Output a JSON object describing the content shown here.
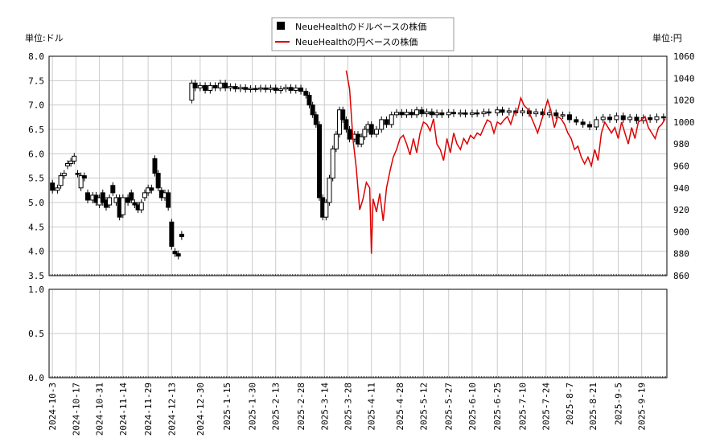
{
  "chart_data": {
    "type": "candlestick+line",
    "legend": [
      {
        "label": "NeueHealthのドルベースの株価",
        "color": "#000000",
        "marker": "square"
      },
      {
        "label": "NeueHealthの円ベースの株価",
        "color": "#dd0000",
        "marker": "line"
      }
    ],
    "left_unit": "単位:ドル",
    "right_unit": "単位:円",
    "y_left": {
      "min": 3.5,
      "max": 8.0,
      "ticks": [
        "3.5",
        "4.0",
        "4.5",
        "5.0",
        "5.5",
        "6.0",
        "6.5",
        "7.0",
        "7.5",
        "8.0"
      ]
    },
    "y_right": {
      "min": 860,
      "max": 1060,
      "ticks": [
        "860",
        "880",
        "900",
        "920",
        "940",
        "960",
        "980",
        "1000",
        "1020",
        "1040",
        "1060"
      ]
    },
    "y_volume": {
      "min": 0.0,
      "max": 1.0,
      "ticks": [
        "0.0",
        "0.5",
        "1.0"
      ]
    },
    "x_range": [
      "2024-10-01",
      "2025-10-04"
    ],
    "x_ticks": [
      "2024-10-3",
      "2024-10-17",
      "2024-10-31",
      "2024-11-14",
      "2024-11-29",
      "2024-12-13",
      "2024-12-30",
      "2025-1-15",
      "2025-1-30",
      "2025-2-13",
      "2025-2-28",
      "2025-3-14",
      "2025-3-28",
      "2025-4-11",
      "2025-4-28",
      "2025-5-12",
      "2025-5-27",
      "2025-6-10",
      "2025-6-25",
      "2025-7-10",
      "2025-7-24",
      "2025-8-7",
      "2025-8-21",
      "2025-9-5",
      "2025-9-19"
    ],
    "grid": true,
    "legend_position": "top-center",
    "usd_series": [
      [
        "2024-10-03",
        5.4,
        5.25
      ],
      [
        "2024-10-06",
        5.25,
        5.3
      ],
      [
        "2024-10-08",
        5.35,
        5.55
      ],
      [
        "2024-10-10",
        5.55,
        5.6
      ],
      [
        "2024-10-12",
        5.75,
        5.8
      ],
      [
        "2024-10-14",
        5.8,
        5.85
      ],
      [
        "2024-10-16",
        5.85,
        5.95
      ],
      [
        "2024-10-18",
        5.6,
        5.58
      ],
      [
        "2024-10-20",
        5.3,
        5.55
      ],
      [
        "2024-10-22",
        5.55,
        5.5
      ],
      [
        "2024-10-24",
        5.2,
        5.05
      ],
      [
        "2024-10-27",
        5.05,
        5.15
      ],
      [
        "2024-10-29",
        5.15,
        5.0
      ],
      [
        "2024-10-31",
        4.95,
        5.1
      ],
      [
        "2024-11-02",
        5.2,
        5.0
      ],
      [
        "2024-11-04",
        5.05,
        4.9
      ],
      [
        "2024-11-06",
        4.95,
        5.1
      ],
      [
        "2024-11-08",
        5.35,
        5.2
      ],
      [
        "2024-11-10",
        5.0,
        5.1
      ],
      [
        "2024-11-12",
        5.1,
        4.7
      ],
      [
        "2024-11-14",
        4.75,
        5.1
      ],
      [
        "2024-11-17",
        5.1,
        5.0
      ],
      [
        "2024-11-19",
        5.2,
        5.05
      ],
      [
        "2024-11-21",
        5.0,
        4.95
      ],
      [
        "2024-11-23",
        4.95,
        4.85
      ],
      [
        "2024-11-25",
        4.85,
        5.0
      ],
      [
        "2024-11-27",
        5.1,
        5.2
      ],
      [
        "2024-11-29",
        5.2,
        5.3
      ],
      [
        "2024-12-01",
        5.3,
        5.25
      ],
      [
        "2024-12-03",
        5.9,
        5.6
      ],
      [
        "2024-12-05",
        5.6,
        5.3
      ],
      [
        "2024-12-07",
        5.25,
        5.1
      ],
      [
        "2024-12-09",
        5.1,
        5.2
      ],
      [
        "2024-12-11",
        5.2,
        4.9
      ],
      [
        "2024-12-13",
        4.6,
        4.1
      ],
      [
        "2024-12-15",
        4.0,
        3.95
      ],
      [
        "2024-12-17",
        3.95,
        3.9
      ],
      [
        "2024-12-19",
        4.35,
        4.3
      ],
      [
        "2024-12-25",
        7.1,
        7.45
      ],
      [
        "2024-12-27",
        7.45,
        7.35
      ],
      [
        "2024-12-30",
        7.35,
        7.4
      ],
      [
        "2025-01-02",
        7.4,
        7.3
      ],
      [
        "2025-01-05",
        7.3,
        7.4
      ],
      [
        "2025-01-08",
        7.4,
        7.35
      ],
      [
        "2025-01-11",
        7.35,
        7.45
      ],
      [
        "2025-01-14",
        7.45,
        7.35
      ],
      [
        "2025-01-17",
        7.35,
        7.38
      ],
      [
        "2025-01-20",
        7.38,
        7.33
      ],
      [
        "2025-01-23",
        7.33,
        7.36
      ],
      [
        "2025-01-26",
        7.36,
        7.32
      ],
      [
        "2025-01-29",
        7.32,
        7.34
      ],
      [
        "2025-02-01",
        7.34,
        7.33
      ],
      [
        "2025-02-04",
        7.33,
        7.35
      ],
      [
        "2025-02-07",
        7.35,
        7.32
      ],
      [
        "2025-02-10",
        7.32,
        7.35
      ],
      [
        "2025-02-13",
        7.35,
        7.3
      ],
      [
        "2025-02-16",
        7.3,
        7.33
      ],
      [
        "2025-02-19",
        7.33,
        7.36
      ],
      [
        "2025-02-22",
        7.36,
        7.3
      ],
      [
        "2025-02-25",
        7.3,
        7.35
      ],
      [
        "2025-02-28",
        7.35,
        7.28
      ],
      [
        "2025-03-03",
        7.28,
        7.2
      ],
      [
        "2025-03-05",
        7.2,
        7.0
      ],
      [
        "2025-03-07",
        7.0,
        6.8
      ],
      [
        "2025-03-09",
        6.8,
        6.6
      ],
      [
        "2025-03-11",
        6.6,
        5.1
      ],
      [
        "2025-03-13",
        5.1,
        4.7
      ],
      [
        "2025-03-15",
        4.7,
        5.0
      ],
      [
        "2025-03-17",
        5.0,
        5.5
      ],
      [
        "2025-03-19",
        5.5,
        6.1
      ],
      [
        "2025-03-21",
        6.1,
        6.4
      ],
      [
        "2025-03-23",
        6.4,
        6.9
      ],
      [
        "2025-03-25",
        6.9,
        6.7
      ],
      [
        "2025-03-27",
        6.7,
        6.5
      ],
      [
        "2025-03-29",
        6.5,
        6.3
      ],
      [
        "2025-04-01",
        6.3,
        6.4
      ],
      [
        "2025-04-03",
        6.4,
        6.2
      ],
      [
        "2025-04-05",
        6.2,
        6.35
      ],
      [
        "2025-04-07",
        6.35,
        6.5
      ],
      [
        "2025-04-09",
        6.5,
        6.6
      ],
      [
        "2025-04-11",
        6.6,
        6.4
      ],
      [
        "2025-04-14",
        6.4,
        6.5
      ],
      [
        "2025-04-17",
        6.5,
        6.7
      ],
      [
        "2025-04-20",
        6.7,
        6.6
      ],
      [
        "2025-04-23",
        6.6,
        6.8
      ],
      [
        "2025-04-26",
        6.8,
        6.85
      ],
      [
        "2025-04-29",
        6.85,
        6.8
      ],
      [
        "2025-05-02",
        6.8,
        6.85
      ],
      [
        "2025-05-05",
        6.85,
        6.8
      ],
      [
        "2025-05-08",
        6.8,
        6.9
      ],
      [
        "2025-05-11",
        6.9,
        6.82
      ],
      [
        "2025-05-14",
        6.82,
        6.86
      ],
      [
        "2025-05-17",
        6.86,
        6.8
      ],
      [
        "2025-05-20",
        6.8,
        6.84
      ],
      [
        "2025-05-23",
        6.84,
        6.8
      ],
      [
        "2025-05-27",
        6.8,
        6.85
      ],
      [
        "2025-05-30",
        6.85,
        6.82
      ],
      [
        "2025-06-03",
        6.82,
        6.84
      ],
      [
        "2025-06-06",
        6.84,
        6.81
      ],
      [
        "2025-06-10",
        6.81,
        6.84
      ],
      [
        "2025-06-13",
        6.84,
        6.82
      ],
      [
        "2025-06-17",
        6.82,
        6.86
      ],
      [
        "2025-06-20",
        6.86,
        6.84
      ],
      [
        "2025-06-25",
        6.84,
        6.9
      ],
      [
        "2025-06-28",
        6.9,
        6.85
      ],
      [
        "2025-07-02",
        6.85,
        6.88
      ],
      [
        "2025-07-06",
        6.88,
        6.84
      ],
      [
        "2025-07-10",
        6.84,
        6.88
      ],
      [
        "2025-07-14",
        6.88,
        6.82
      ],
      [
        "2025-07-18",
        6.82,
        6.86
      ],
      [
        "2025-07-22",
        6.86,
        6.8
      ],
      [
        "2025-07-26",
        6.8,
        6.84
      ],
      [
        "2025-07-30",
        6.84,
        6.78
      ],
      [
        "2025-08-03",
        6.78,
        6.8
      ],
      [
        "2025-08-07",
        6.8,
        6.7
      ],
      [
        "2025-08-11",
        6.7,
        6.65
      ],
      [
        "2025-08-15",
        6.65,
        6.6
      ],
      [
        "2025-08-19",
        6.6,
        6.55
      ],
      [
        "2025-08-23",
        6.55,
        6.7
      ],
      [
        "2025-08-27",
        6.7,
        6.75
      ],
      [
        "2025-08-31",
        6.75,
        6.7
      ],
      [
        "2025-09-04",
        6.7,
        6.78
      ],
      [
        "2025-09-08",
        6.78,
        6.7
      ],
      [
        "2025-09-12",
        6.7,
        6.75
      ],
      [
        "2025-09-16",
        6.75,
        6.68
      ],
      [
        "2025-09-20",
        6.68,
        6.74
      ],
      [
        "2025-09-24",
        6.74,
        6.7
      ],
      [
        "2025-09-28",
        6.7,
        6.76
      ],
      [
        "2025-10-02",
        6.76,
        6.74
      ]
    ],
    "jpy_series": [
      [
        "2025-03-27",
        1047
      ],
      [
        "2025-03-29",
        1030
      ],
      [
        "2025-03-31",
        985
      ],
      [
        "2025-04-02",
        958
      ],
      [
        "2025-04-04",
        920
      ],
      [
        "2025-04-06",
        930
      ],
      [
        "2025-04-08",
        945
      ],
      [
        "2025-04-10",
        940
      ],
      [
        "2025-04-11",
        880
      ],
      [
        "2025-04-12",
        930
      ],
      [
        "2025-04-14",
        918
      ],
      [
        "2025-04-16",
        935
      ],
      [
        "2025-04-18",
        910
      ],
      [
        "2025-04-20",
        940
      ],
      [
        "2025-04-22",
        955
      ],
      [
        "2025-04-24",
        968
      ],
      [
        "2025-04-26",
        975
      ],
      [
        "2025-04-28",
        985
      ],
      [
        "2025-04-30",
        988
      ],
      [
        "2025-05-02",
        980
      ],
      [
        "2025-05-04",
        970
      ],
      [
        "2025-05-06",
        985
      ],
      [
        "2025-05-08",
        972
      ],
      [
        "2025-05-10",
        990
      ],
      [
        "2025-05-12",
        1000
      ],
      [
        "2025-05-14",
        998
      ],
      [
        "2025-05-16",
        992
      ],
      [
        "2025-05-18",
        1003
      ],
      [
        "2025-05-20",
        980
      ],
      [
        "2025-05-22",
        975
      ],
      [
        "2025-05-24",
        965
      ],
      [
        "2025-05-26",
        985
      ],
      [
        "2025-05-28",
        972
      ],
      [
        "2025-05-30",
        990
      ],
      [
        "2025-06-01",
        980
      ],
      [
        "2025-06-03",
        975
      ],
      [
        "2025-06-05",
        985
      ],
      [
        "2025-06-07",
        980
      ],
      [
        "2025-06-09",
        988
      ],
      [
        "2025-06-11",
        985
      ],
      [
        "2025-06-13",
        990
      ],
      [
        "2025-06-15",
        988
      ],
      [
        "2025-06-17",
        995
      ],
      [
        "2025-06-19",
        1002
      ],
      [
        "2025-06-21",
        1000
      ],
      [
        "2025-06-23",
        990
      ],
      [
        "2025-06-25",
        1000
      ],
      [
        "2025-06-27",
        998
      ],
      [
        "2025-06-29",
        1002
      ],
      [
        "2025-07-01",
        1005
      ],
      [
        "2025-07-03",
        998
      ],
      [
        "2025-07-05",
        1008
      ],
      [
        "2025-07-07",
        1010
      ],
      [
        "2025-07-09",
        1022
      ],
      [
        "2025-07-11",
        1015
      ],
      [
        "2025-07-13",
        1012
      ],
      [
        "2025-07-15",
        1005
      ],
      [
        "2025-07-17",
        998
      ],
      [
        "2025-07-19",
        990
      ],
      [
        "2025-07-21",
        1000
      ],
      [
        "2025-07-23",
        1010
      ],
      [
        "2025-07-25",
        1020
      ],
      [
        "2025-07-27",
        1010
      ],
      [
        "2025-07-29",
        995
      ],
      [
        "2025-07-31",
        1005
      ],
      [
        "2025-08-02",
        1003
      ],
      [
        "2025-08-04",
        998
      ],
      [
        "2025-08-06",
        990
      ],
      [
        "2025-08-08",
        985
      ],
      [
        "2025-08-10",
        975
      ],
      [
        "2025-08-12",
        978
      ],
      [
        "2025-08-14",
        968
      ],
      [
        "2025-08-16",
        962
      ],
      [
        "2025-08-18",
        968
      ],
      [
        "2025-08-20",
        960
      ],
      [
        "2025-08-22",
        975
      ],
      [
        "2025-08-24",
        965
      ],
      [
        "2025-08-26",
        990
      ],
      [
        "2025-08-28",
        1000
      ],
      [
        "2025-08-30",
        995
      ],
      [
        "2025-09-01",
        990
      ],
      [
        "2025-09-03",
        995
      ],
      [
        "2025-09-05",
        985
      ],
      [
        "2025-09-07",
        1000
      ],
      [
        "2025-09-09",
        990
      ],
      [
        "2025-09-11",
        980
      ],
      [
        "2025-09-13",
        995
      ],
      [
        "2025-09-15",
        985
      ],
      [
        "2025-09-17",
        1000
      ],
      [
        "2025-09-19",
        1002
      ],
      [
        "2025-09-21",
        1005
      ],
      [
        "2025-09-23",
        995
      ],
      [
        "2025-09-25",
        990
      ],
      [
        "2025-09-27",
        985
      ],
      [
        "2025-09-29",
        995
      ],
      [
        "2025-10-01",
        998
      ],
      [
        "2025-10-03",
        1003
      ]
    ]
  }
}
